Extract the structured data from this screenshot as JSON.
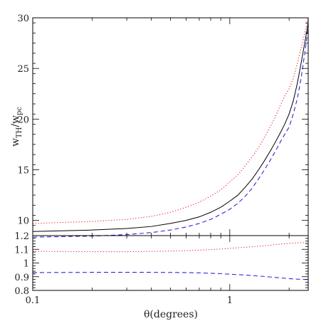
{
  "chart_data": [
    {
      "type": "line",
      "panel": "upper",
      "xscale": "log",
      "xlim": [
        0.1,
        2.5
      ],
      "ylim": [
        8.5,
        30
      ],
      "xlabel": "",
      "ylabel": "w_TH / w_pc",
      "ylabel_parts": {
        "w1": "w",
        "sub1": "TH",
        "slash": "/",
        "w2": "w",
        "sub2": "pc"
      },
      "y_ticks": [
        10,
        15,
        20,
        25,
        30
      ],
      "y_tick_labels": [
        "10",
        "15",
        "20",
        "25",
        "30"
      ],
      "series": [
        {
          "style": "dotted",
          "color": "#e8202a",
          "x": [
            0.1,
            0.2,
            0.3,
            0.4,
            0.5,
            0.6,
            0.7,
            0.8,
            0.9,
            1.0,
            1.1,
            1.2,
            1.3,
            1.4,
            1.5,
            1.6,
            1.7,
            1.8,
            1.9,
            2.0,
            2.1,
            2.2,
            2.3,
            2.4,
            2.5
          ],
          "y": [
            9.7,
            9.9,
            10.1,
            10.4,
            10.8,
            11.3,
            11.8,
            12.4,
            13.0,
            13.8,
            14.5,
            15.4,
            16.3,
            17.2,
            18.2,
            19.2,
            20.2,
            21.3,
            22.3,
            23.0,
            24.0,
            25.5,
            27.0,
            28.5,
            30.0
          ]
        },
        {
          "style": "solid",
          "color": "#000000",
          "x": [
            0.1,
            0.2,
            0.3,
            0.4,
            0.5,
            0.6,
            0.7,
            0.8,
            0.9,
            1.0,
            1.1,
            1.2,
            1.3,
            1.4,
            1.5,
            1.6,
            1.7,
            1.8,
            1.9,
            2.0,
            2.1,
            2.2,
            2.3,
            2.4,
            2.5
          ],
          "y": [
            8.9,
            9.05,
            9.2,
            9.4,
            9.7,
            10.0,
            10.35,
            10.8,
            11.3,
            11.9,
            12.5,
            13.3,
            14.1,
            15.0,
            15.9,
            16.8,
            17.7,
            18.6,
            19.5,
            20.5,
            21.8,
            23.5,
            25.5,
            27.5,
            29.5
          ]
        },
        {
          "style": "dashed",
          "color": "#2a2ae0",
          "x": [
            0.1,
            0.2,
            0.3,
            0.4,
            0.5,
            0.6,
            0.7,
            0.8,
            0.9,
            1.0,
            1.1,
            1.2,
            1.3,
            1.4,
            1.5,
            1.6,
            1.7,
            1.8,
            1.9,
            2.0,
            2.1,
            2.2,
            2.3,
            2.4,
            2.5
          ],
          "y": [
            8.35,
            8.45,
            8.6,
            8.8,
            9.05,
            9.35,
            9.7,
            10.1,
            10.6,
            11.1,
            11.7,
            12.4,
            13.2,
            14.1,
            15.0,
            15.9,
            16.8,
            17.7,
            18.5,
            19.2,
            20.5,
            22.0,
            24.0,
            26.5,
            29.0
          ]
        }
      ]
    },
    {
      "type": "line",
      "panel": "lower",
      "xscale": "log",
      "xlim": [
        0.1,
        2.5
      ],
      "ylim": [
        0.8,
        1.2
      ],
      "xlabel": "θ(degrees)",
      "ylabel": "",
      "y_ticks": [
        0.8,
        0.9,
        1.0,
        1.1,
        1.2
      ],
      "y_tick_labels": [
        "0.8",
        "0.9",
        "1",
        "1.1",
        "1.2"
      ],
      "x_ticks": [
        0.1,
        1
      ],
      "x_tick_labels": [
        "0.1",
        "1"
      ],
      "series": [
        {
          "style": "dotted",
          "color": "#e8202a",
          "x": [
            0.1,
            0.2,
            0.3,
            0.4,
            0.5,
            0.6,
            0.7,
            0.8,
            0.9,
            1.0,
            1.2,
            1.4,
            1.6,
            1.8,
            2.0,
            2.2,
            2.4,
            2.5
          ],
          "y": [
            1.085,
            1.083,
            1.083,
            1.085,
            1.087,
            1.09,
            1.094,
            1.098,
            1.102,
            1.107,
            1.115,
            1.122,
            1.13,
            1.138,
            1.143,
            1.147,
            1.15,
            1.152
          ]
        },
        {
          "style": "dashed",
          "color": "#2a2ae0",
          "x": [
            0.1,
            0.2,
            0.3,
            0.4,
            0.5,
            0.6,
            0.7,
            0.8,
            0.9,
            1.0,
            1.2,
            1.4,
            1.6,
            1.8,
            2.0,
            2.2,
            2.4,
            2.5
          ],
          "y": [
            0.93,
            0.932,
            0.932,
            0.932,
            0.931,
            0.93,
            0.928,
            0.925,
            0.922,
            0.918,
            0.912,
            0.905,
            0.898,
            0.892,
            0.886,
            0.882,
            0.88,
            0.88
          ]
        }
      ]
    }
  ]
}
